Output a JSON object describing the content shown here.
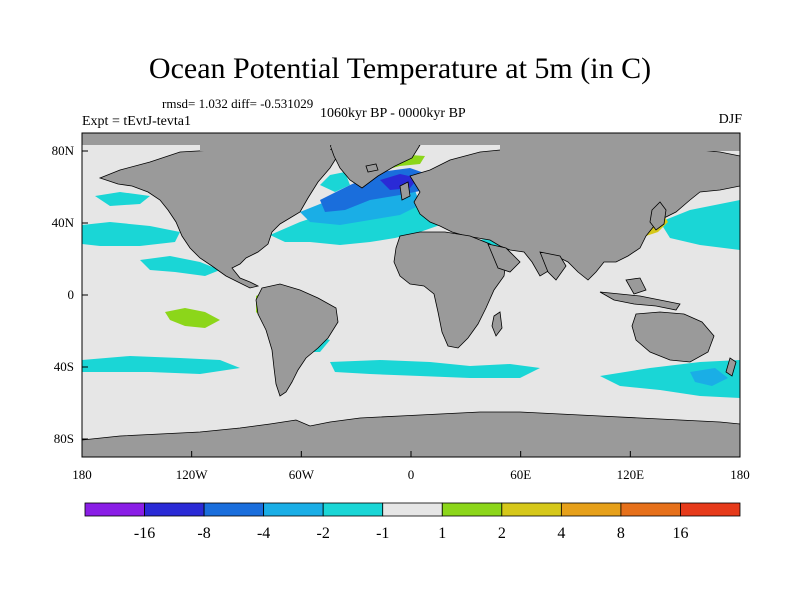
{
  "title": "Ocean Potential Temperature at 5m (in C)",
  "stats": "rmsd= 1.032 diff= -0.531029",
  "period": "1060kyr BP - 0000kyr BP",
  "experiment": "Expt = tEvtJ-tevta1",
  "season": "DJF",
  "colors": {
    "land": "#9a9a9a",
    "ocean_neutral": "#e6e6e6",
    "coastline": "#000000"
  },
  "chart_data": {
    "type": "heatmap",
    "title": "Ocean Potential Temperature at 5m (in C)",
    "projection": "cylindrical-equidistant",
    "lon_range": [
      -180,
      180
    ],
    "lat_range": [
      -90,
      90
    ],
    "x_ticks": [
      {
        "lon": -180,
        "label": "180"
      },
      {
        "lon": -120,
        "label": "120W"
      },
      {
        "lon": -60,
        "label": "60W"
      },
      {
        "lon": 0,
        "label": "0"
      },
      {
        "lon": 60,
        "label": "60E"
      },
      {
        "lon": 120,
        "label": "120E"
      },
      {
        "lon": 180,
        "label": "180"
      }
    ],
    "y_ticks": [
      {
        "lat": 80,
        "label": "80N"
      },
      {
        "lat": 40,
        "label": "40N"
      },
      {
        "lat": 0,
        "label": "0"
      },
      {
        "lat": -40,
        "label": "40S"
      },
      {
        "lat": -80,
        "label": "80S"
      }
    ],
    "colorbar": {
      "colors": [
        "#8a1ee6",
        "#2a2ad6",
        "#1a6edc",
        "#1aaee6",
        "#1ad6d6",
        "#e6e6e6",
        "#8cd61a",
        "#d6c81a",
        "#e6a01a",
        "#e6701a",
        "#e63a1a"
      ],
      "labels": [
        "-16",
        "-8",
        "-4",
        "-2",
        "-1",
        "1",
        "2",
        "4",
        "8",
        "16"
      ]
    },
    "anomaly_regions": [
      {
        "name": "north-atlantic-cold",
        "value_class": "-4",
        "lon": [
          -75,
          -15
        ],
        "lat": [
          30,
          55
        ]
      },
      {
        "name": "nordic-seas-cold",
        "value_class": "-8",
        "lon": [
          -40,
          5
        ],
        "lat": [
          55,
          72
        ]
      },
      {
        "name": "greenland-sea-warm",
        "value_class": "2",
        "lon": [
          -35,
          -5
        ],
        "lat": [
          74,
          80
        ]
      },
      {
        "name": "north-pacific-cool",
        "value_class": "-2",
        "lon": [
          150,
          180
        ],
        "lat": [
          30,
          45
        ]
      },
      {
        "name": "kuroshio-warm",
        "value_class": "4",
        "lon": [
          130,
          145
        ],
        "lat": [
          33,
          40
        ]
      },
      {
        "name": "southern-ocean-cool",
        "value_class": "-2",
        "lon": [
          -170,
          180
        ],
        "lat": [
          -55,
          -40
        ]
      },
      {
        "name": "east-pacific-warm",
        "value_class": "2",
        "lon": [
          -120,
          -100
        ],
        "lat": [
          -15,
          -5
        ]
      }
    ]
  }
}
